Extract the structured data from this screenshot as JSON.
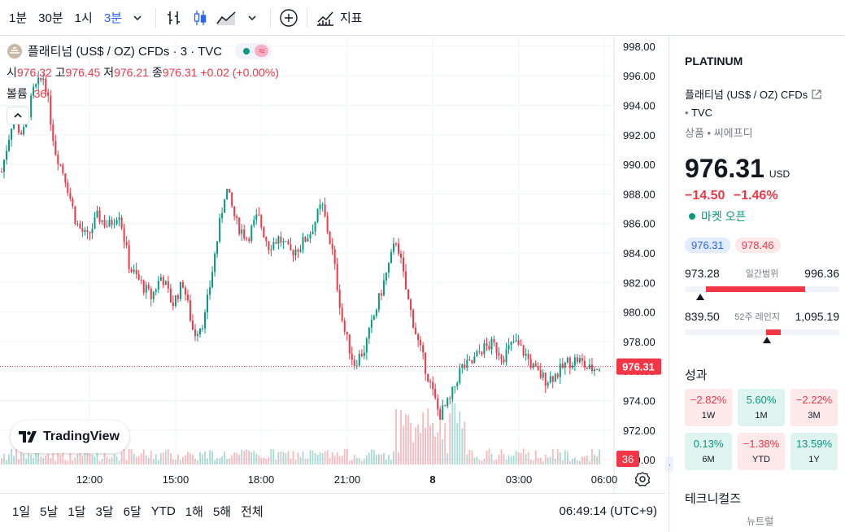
{
  "toolbar": {
    "intervals": [
      "1분",
      "30분",
      "1시",
      "3분"
    ],
    "active_interval": "3분",
    "indicators_label": "지표"
  },
  "legend": {
    "symbol": "플래티넘 (US$ / OZ) CFDs · 3 · TVC",
    "open_label": "시",
    "open": "976.32",
    "high_label": "고",
    "high": "976.45",
    "low_label": "저",
    "low": "976.21",
    "close_label": "종",
    "close": "976.31",
    "change": "+0.02 (+0.00%)",
    "volume_label": "볼륨",
    "volume": "36"
  },
  "watermark": "TradingView",
  "chart_data": {
    "type": "candlestick",
    "y_axis_ticks": [
      "998.00",
      "996.00",
      "994.00",
      "992.00",
      "990.00",
      "988.00",
      "986.00",
      "984.00",
      "982.00",
      "980.00",
      "978.00",
      "976.00",
      "974.00",
      "972.00",
      "970.00"
    ],
    "ylim": [
      969.4,
      998.6
    ],
    "x_axis_ticks": [
      "12:00",
      "15:00",
      "18:00",
      "21:00",
      "8",
      "03:00",
      "06:00"
    ],
    "last_price": "976.31",
    "last_volume": "36",
    "close_path": [
      989.5,
      993,
      992,
      995,
      996,
      991,
      989,
      986,
      985,
      986.5,
      985.8,
      986.8,
      983,
      982,
      981,
      982.5,
      980.5,
      982,
      978.5,
      979.5,
      984,
      988.5,
      986,
      985,
      986.5,
      984.5,
      985,
      984,
      984.5,
      985.5,
      987.3,
      984,
      979,
      976.5,
      977.5,
      980,
      982.5,
      985,
      981,
      978,
      975.5,
      973,
      974,
      976.2,
      976.5,
      977.5,
      977.8,
      977,
      978,
      977.2,
      976,
      975.4,
      975.8,
      976.6,
      976.8,
      976.1,
      976.3
    ]
  },
  "bottombar": {
    "ranges": [
      "1일",
      "5날",
      "1달",
      "3달",
      "6달",
      "YTD",
      "1해",
      "5해",
      "전체"
    ],
    "time": "06:49:14 (UTC+9)"
  },
  "sidebar": {
    "ticker": "PLATINUM",
    "name": "플래티넘 (US$ / OZ) CFDs",
    "exchange": "TVC",
    "category": "상품",
    "category_sub": "씨에프디",
    "price": "976.31",
    "currency": "USD",
    "change_abs": "−14.50",
    "change_pct": "−1.46%",
    "market_status": "마켓 오픈",
    "bid": "976.31",
    "ask": "978.46",
    "day_low": "973.28",
    "day_range_label": "일간범위",
    "day_high": "996.36",
    "day_marker": 0.1,
    "week_low": "839.50",
    "week_range_label": "52주 레인지",
    "week_high": "1,095.19",
    "week_marker": 0.53,
    "performance_title": "성과",
    "performance": [
      {
        "value": "−2.82%",
        "label": "1W",
        "pos": false
      },
      {
        "value": "5.60%",
        "label": "1M",
        "pos": true
      },
      {
        "value": "−2.22%",
        "label": "3M",
        "pos": false
      },
      {
        "value": "0.13%",
        "label": "6M",
        "pos": true
      },
      {
        "value": "−1.38%",
        "label": "YTD",
        "pos": false
      },
      {
        "value": "13.59%",
        "label": "1Y",
        "pos": true
      }
    ],
    "technicals_title": "테크니컬즈",
    "technicals_rating": "뉴트럴"
  }
}
